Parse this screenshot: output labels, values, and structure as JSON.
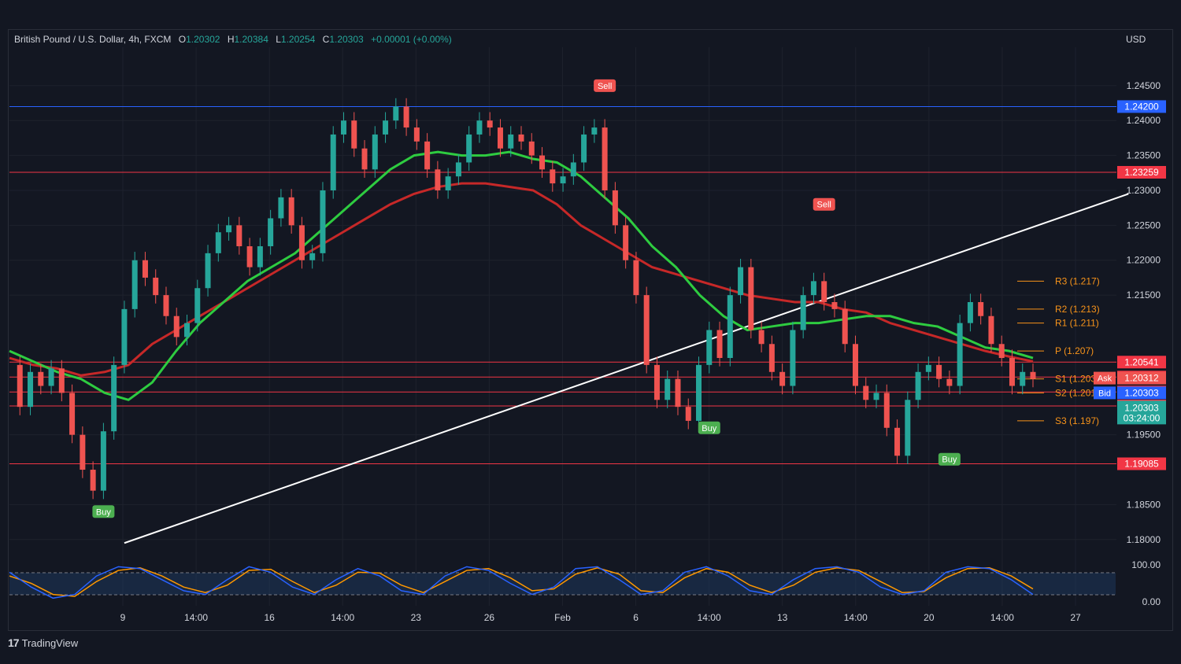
{
  "header": {
    "symbol": "British Pound / U.S. Dollar, 4h, FXCM",
    "open_label": "O",
    "open": "1.20302",
    "high_label": "H",
    "high": "1.20384",
    "low_label": "L",
    "low": "1.20254",
    "close_label": "C",
    "close": "1.20303",
    "change": "+0.00001 (+0.00%)",
    "currency": "USD"
  },
  "brand": {
    "logo": "17",
    "name": "TradingView"
  },
  "colors": {
    "up": "#26a69a",
    "down": "#ef5350",
    "bg": "#131722",
    "blue_line": "#2962ff",
    "red_line": "#f23645",
    "pivot": "#f7931a"
  },
  "chart_data": {
    "type": "line",
    "description_series": "GBP/USD 4h close (approximate)",
    "x_ticks": [
      "9",
      "14:00",
      "16",
      "14:00",
      "23",
      "26",
      "Feb",
      "6",
      "14:00",
      "13",
      "14:00",
      "20",
      "14:00",
      "27"
    ],
    "y_ticks": [
      "1.24500",
      "1.24000",
      "1.23500",
      "1.23000",
      "1.22500",
      "1.22000",
      "1.21500",
      "1.19500",
      "1.18500",
      "1.18000"
    ],
    "ylim": [
      1.1775,
      1.2505
    ],
    "price_series": [
      1.205,
      1.199,
      1.204,
      1.202,
      1.2045,
      1.201,
      1.195,
      1.19,
      1.187,
      1.1955,
      1.205,
      1.213,
      1.22,
      1.2175,
      1.215,
      1.212,
      1.209,
      1.211,
      1.216,
      1.221,
      1.224,
      1.225,
      1.222,
      1.219,
      1.222,
      1.226,
      1.229,
      1.225,
      1.22,
      1.221,
      1.23,
      1.238,
      1.24,
      1.236,
      1.233,
      1.238,
      1.24,
      1.242,
      1.239,
      1.237,
      1.233,
      1.23,
      1.232,
      1.234,
      1.238,
      1.24,
      1.239,
      1.236,
      1.238,
      1.237,
      1.235,
      1.233,
      1.231,
      1.232,
      1.234,
      1.238,
      1.239,
      1.23,
      1.225,
      1.22,
      1.215,
      1.205,
      1.2,
      1.203,
      1.199,
      1.197,
      1.205,
      1.21,
      1.206,
      1.215,
      1.219,
      1.21,
      1.208,
      1.204,
      1.202,
      1.21,
      1.215,
      1.217,
      1.214,
      1.213,
      1.208,
      1.202,
      1.2,
      1.201,
      1.196,
      1.192,
      1.2,
      1.204,
      1.205,
      1.203,
      1.202,
      1.211,
      1.214,
      1.212,
      1.208,
      1.206,
      1.202,
      1.204,
      1.203
    ],
    "ema_fast": [
      1.207,
      1.2055,
      1.204,
      1.203,
      1.201,
      1.2,
      1.2025,
      1.207,
      1.211,
      1.214,
      1.217,
      1.219,
      1.221,
      1.224,
      1.227,
      1.23,
      1.233,
      1.235,
      1.2355,
      1.235,
      1.235,
      1.2355,
      1.2345,
      1.234,
      1.232,
      1.229,
      1.226,
      1.222,
      1.219,
      1.215,
      1.212,
      1.21,
      1.2105,
      1.211,
      1.211,
      1.2115,
      1.212,
      1.212,
      1.211,
      1.2105,
      1.209,
      1.2075,
      1.207,
      1.206
    ],
    "ema_slow": [
      1.206,
      1.205,
      1.2045,
      1.2035,
      1.204,
      1.205,
      1.208,
      1.21,
      1.212,
      1.214,
      1.216,
      1.218,
      1.22,
      1.222,
      1.224,
      1.226,
      1.228,
      1.2295,
      1.2305,
      1.231,
      1.231,
      1.2305,
      1.23,
      1.228,
      1.225,
      1.223,
      1.221,
      1.219,
      1.218,
      1.217,
      1.216,
      1.215,
      1.2145,
      1.214,
      1.214,
      1.213,
      1.2125,
      1.211,
      1.21,
      1.209,
      1.208,
      1.207,
      1.2062,
      1.2055
    ],
    "resistance_supports": [
      {
        "label": "1.24200",
        "value": 1.242,
        "color": "#2962ff"
      },
      {
        "label": "1.23259",
        "value": 1.23259,
        "color": "#f23645"
      },
      {
        "label": "1.20541",
        "value": 1.20541,
        "color": "#f23645"
      },
      {
        "label": "1.20327",
        "value": 1.20327,
        "color": "#f23645"
      },
      {
        "label": "1.20113",
        "value": 1.20113,
        "color": "#f23645"
      },
      {
        "label": "1.19913",
        "value": 1.19913,
        "color": "#f23645"
      },
      {
        "label": "1.19085",
        "value": 1.19085,
        "color": "#f23645"
      }
    ],
    "pivots": [
      {
        "label": "R3 (1.217)",
        "value": 1.217
      },
      {
        "label": "R2 (1.213)",
        "value": 1.213
      },
      {
        "label": "R1 (1.211)",
        "value": 1.211
      },
      {
        "label": "P (1.207)",
        "value": 1.207
      },
      {
        "label": "S1 (1.203)",
        "value": 1.203
      },
      {
        "label": "S2 (1.201)",
        "value": 1.201
      },
      {
        "label": "S3 (1.197)",
        "value": 1.197
      }
    ],
    "price_tags": {
      "ask_label": "Ask",
      "ask": "1.20312",
      "bid_label": "Bid",
      "bid": "1.20303",
      "last": "1.20303",
      "countdown": "03:24:00"
    },
    "signals": [
      {
        "label": "Buy",
        "type": "buy",
        "idx": 9,
        "value": 1.184
      },
      {
        "label": "Sell",
        "type": "sell",
        "idx": 57,
        "value": 1.245
      },
      {
        "label": "Sell",
        "type": "sell",
        "idx": 78,
        "value": 1.228
      },
      {
        "label": "Buy",
        "type": "buy",
        "idx": 67,
        "value": 1.196
      },
      {
        "label": "Buy",
        "type": "buy",
        "idx": 90,
        "value": 1.1915
      }
    ],
    "trendline": {
      "from": [
        11,
        1.1795
      ],
      "to": [
        99,
        1.2295
      ]
    },
    "oscillator": {
      "y_ticks": [
        "100.00",
        "0.00"
      ],
      "series_k": [
        80,
        40,
        10,
        20,
        70,
        95,
        90,
        60,
        30,
        20,
        60,
        95,
        80,
        40,
        20,
        60,
        90,
        70,
        30,
        20,
        70,
        95,
        85,
        50,
        20,
        40,
        90,
        95,
        60,
        20,
        30,
        80,
        95,
        70,
        30,
        20,
        60,
        90,
        95,
        80,
        40,
        20,
        30,
        80,
        95,
        90,
        60,
        20
      ],
      "series_d": [
        70,
        50,
        20,
        15,
        55,
        85,
        92,
        70,
        40,
        25,
        45,
        85,
        88,
        55,
        25,
        45,
        80,
        78,
        45,
        25,
        55,
        85,
        90,
        65,
        30,
        35,
        75,
        92,
        75,
        30,
        25,
        65,
        90,
        80,
        45,
        25,
        45,
        80,
        92,
        85,
        55,
        25,
        28,
        65,
        90,
        92,
        70,
        35
      ]
    }
  }
}
